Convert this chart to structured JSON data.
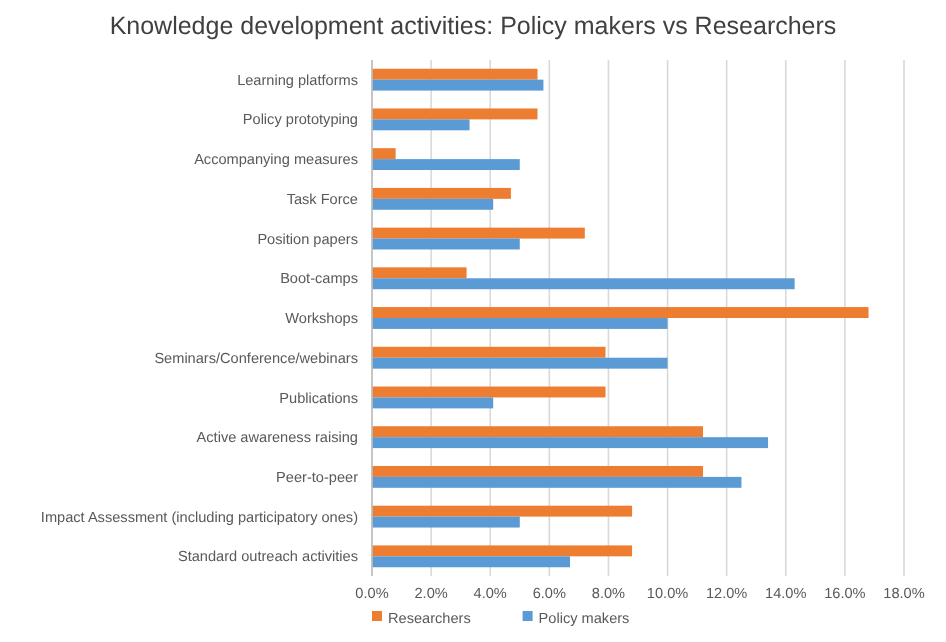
{
  "chart_data": {
    "type": "bar",
    "orientation": "horizontal",
    "title": "Knowledge development activities: Policy makers vs Researchers",
    "categories": [
      "Learning platforms",
      "Policy prototyping",
      "Accompanying measures",
      "Task Force",
      "Position papers",
      "Boot-camps",
      "Workshops",
      "Seminars/Conference/webinars",
      "Publications",
      "Active awareness raising",
      "Peer-to-peer",
      "Impact Assessment (including participatory ones)",
      "Standard outreach activities"
    ],
    "series": [
      {
        "name": "Researchers",
        "color": "#ed7d31",
        "values": [
          5.6,
          5.6,
          0.8,
          4.7,
          7.2,
          3.2,
          16.8,
          7.9,
          7.9,
          11.2,
          11.2,
          8.8,
          8.8
        ]
      },
      {
        "name": "Policy makers",
        "color": "#5b9bd5",
        "values": [
          5.8,
          3.3,
          5.0,
          4.1,
          5.0,
          14.3,
          10.0,
          10.0,
          4.1,
          13.4,
          12.5,
          5.0,
          6.7
        ]
      }
    ],
    "xlim": [
      0,
      18
    ],
    "xticks": [
      {
        "value": 0,
        "label": "0.0%"
      },
      {
        "value": 2,
        "label": "2.0%"
      },
      {
        "value": 4,
        "label": "4.0%"
      },
      {
        "value": 6,
        "label": "6.0%"
      },
      {
        "value": 8,
        "label": "8.0%"
      },
      {
        "value": 10,
        "label": "10.0%"
      },
      {
        "value": 12,
        "label": "12.0%"
      },
      {
        "value": 14,
        "label": "14.0%"
      },
      {
        "value": 16,
        "label": "16.0%"
      },
      {
        "value": 18,
        "label": "18.0%"
      }
    ],
    "grid": "x",
    "legend": "bottom"
  }
}
